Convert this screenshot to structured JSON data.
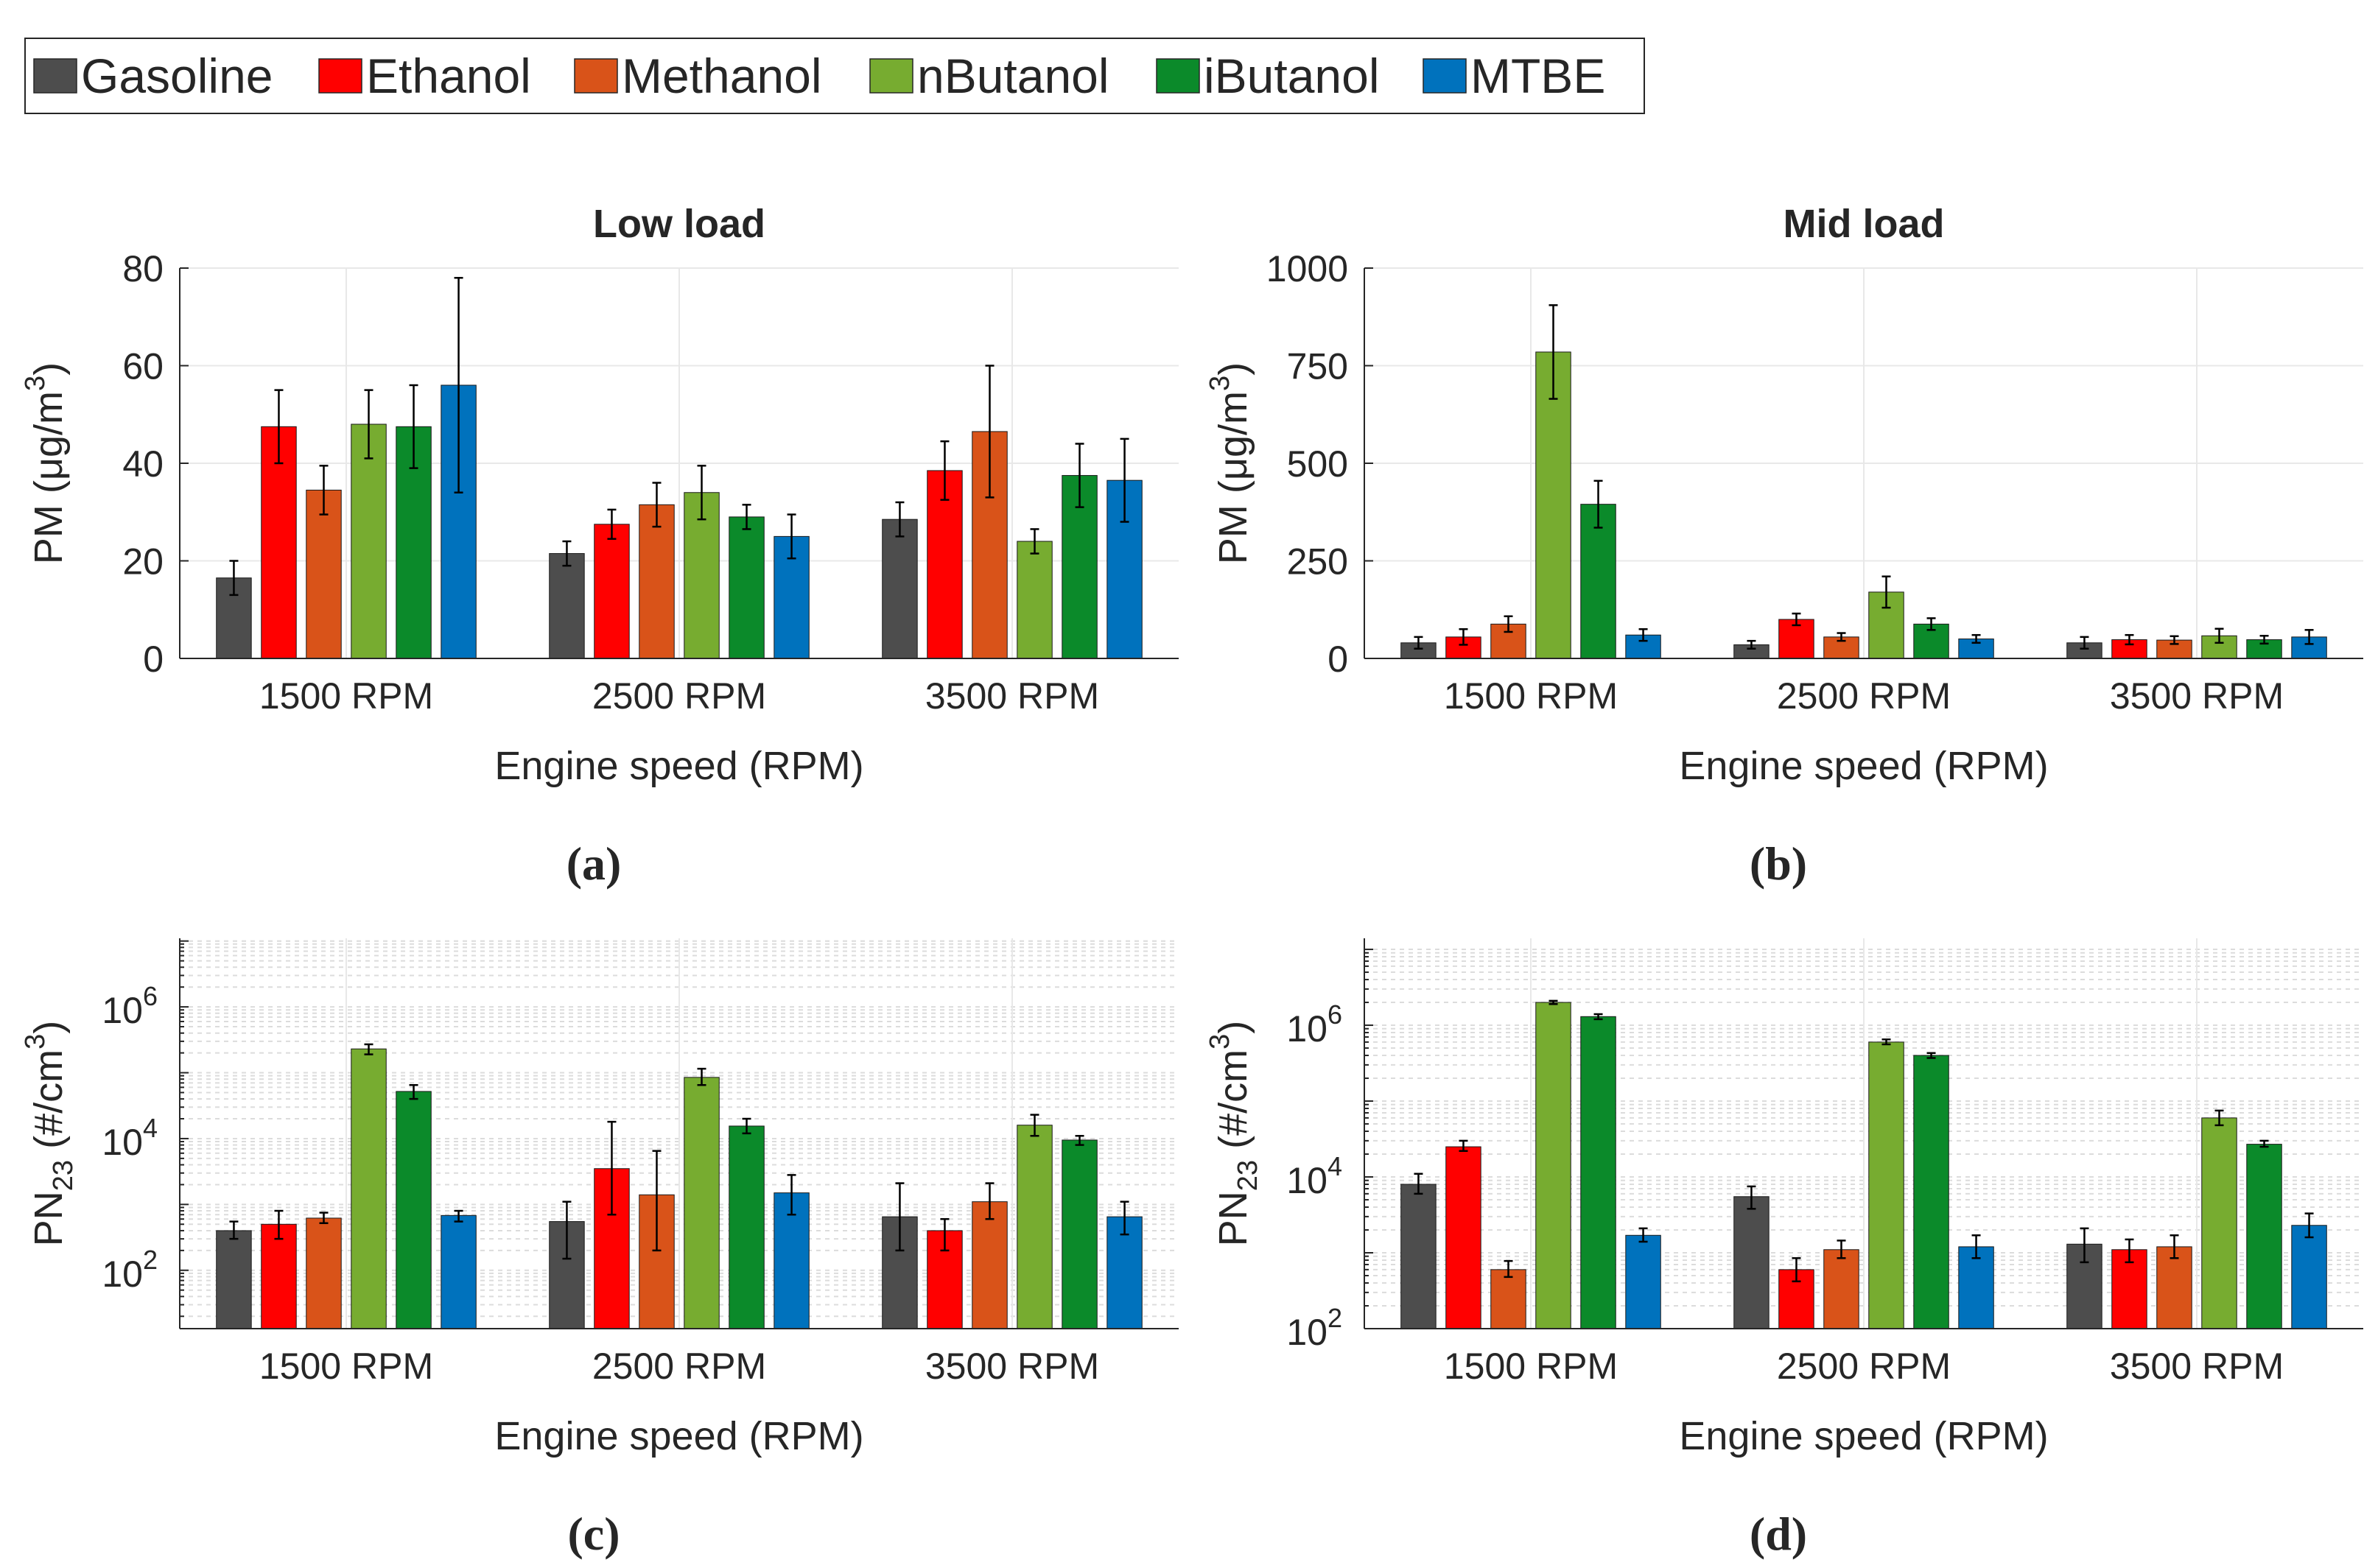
{
  "legend": {
    "entries": [
      {
        "name": "Gasoline",
        "color": "#4d4d4d"
      },
      {
        "name": "Ethanol",
        "color": "#ff0000"
      },
      {
        "name": "Methanol",
        "color": "#d95319"
      },
      {
        "name": "nButanol",
        "color": "#77ac30"
      },
      {
        "name": "iButanol",
        "color": "#0b8a2a"
      },
      {
        "name": "MTBE",
        "color": "#0072bd"
      }
    ]
  },
  "chart_data": [
    {
      "panel": "(a)",
      "type": "bar",
      "title": "Low load",
      "xlabel": "Engine speed (RPM)",
      "ylabel": "PM (μg/m3)",
      "ylabel_parts": {
        "main": "PM (μg/m",
        "sup": "3",
        "end": ")"
      },
      "yscale": "linear",
      "ylim": [
        0,
        80
      ],
      "yticks": [
        0,
        20,
        40,
        60,
        80
      ],
      "ytick_labels": [
        "0",
        "20",
        "40",
        "60",
        "80"
      ],
      "categories": [
        "1500 RPM",
        "2500 RPM",
        "3500 RPM"
      ],
      "series": [
        {
          "name": "Gasoline",
          "values": [
            16.5,
            21.5,
            28.5
          ],
          "err": [
            3.5,
            2.5,
            3.5
          ]
        },
        {
          "name": "Ethanol",
          "values": [
            47.5,
            27.5,
            38.5
          ],
          "err": [
            7.5,
            3,
            6
          ]
        },
        {
          "name": "Methanol",
          "values": [
            34.5,
            31.5,
            46.5
          ],
          "err": [
            5,
            4.5,
            13.5
          ]
        },
        {
          "name": "nButanol",
          "values": [
            48,
            34,
            24
          ],
          "err": [
            7,
            5.5,
            2.5
          ]
        },
        {
          "name": "iButanol",
          "values": [
            47.5,
            29,
            37.5
          ],
          "err": [
            8.5,
            2.5,
            6.5
          ]
        },
        {
          "name": "MTBE",
          "values": [
            56,
            25,
            36.5
          ],
          "err": [
            22,
            4.5,
            8.5
          ]
        }
      ]
    },
    {
      "panel": "(b)",
      "type": "bar",
      "title": "Mid load",
      "xlabel": "Engine speed (RPM)",
      "ylabel": "PM (μg/m3)",
      "ylabel_parts": {
        "main": "PM (μg/m",
        "sup": "3",
        "end": ")"
      },
      "yscale": "linear",
      "ylim": [
        0,
        1000
      ],
      "yticks": [
        0,
        250,
        500,
        750,
        1000
      ],
      "ytick_labels": [
        "0",
        "250",
        "500",
        "750",
        "1000"
      ],
      "categories": [
        "1500 RPM",
        "2500 RPM",
        "3500 RPM"
      ],
      "series": [
        {
          "name": "Gasoline",
          "values": [
            40,
            35,
            40
          ],
          "err": [
            15,
            10,
            15
          ]
        },
        {
          "name": "Ethanol",
          "values": [
            55,
            100,
            48
          ],
          "err": [
            20,
            15,
            12
          ]
        },
        {
          "name": "Methanol",
          "values": [
            88,
            55,
            47
          ],
          "err": [
            20,
            10,
            10
          ]
        },
        {
          "name": "nButanol",
          "values": [
            785,
            170,
            58
          ],
          "err": [
            120,
            40,
            18
          ]
        },
        {
          "name": "iButanol",
          "values": [
            395,
            88,
            48
          ],
          "err": [
            60,
            15,
            10
          ]
        },
        {
          "name": "MTBE",
          "values": [
            60,
            50,
            55
          ],
          "err": [
            15,
            10,
            18
          ]
        }
      ]
    },
    {
      "panel": "(c)",
      "type": "bar",
      "title": "",
      "xlabel": "Engine speed (RPM)",
      "ylabel": "PN23 (#/cm3)",
      "ylabel_parts": {
        "main": "PN",
        "sub": "23",
        "mid": " (#/cm",
        "sup": "3",
        "end": ")"
      },
      "yscale": "log",
      "ylim": [
        13,
        11000000
      ],
      "ytick_exponents": [
        2,
        4,
        6
      ],
      "ytick_labels": [
        "10",
        "10",
        "10"
      ],
      "categories": [
        "1500 RPM",
        "2500 RPM",
        "3500 RPM"
      ],
      "series": [
        {
          "name": "Gasoline",
          "values": [
            400,
            550,
            650
          ],
          "errlo": [
            300,
            150,
            200
          ],
          "errhi": [
            550,
            1100,
            2100
          ]
        },
        {
          "name": "Ethanol",
          "values": [
            500,
            3500,
            400
          ],
          "errlo": [
            300,
            700,
            200
          ],
          "errhi": [
            800,
            18000,
            600
          ]
        },
        {
          "name": "Methanol",
          "values": [
            620,
            1400,
            1100
          ],
          "errlo": [
            520,
            200,
            600
          ],
          "errhi": [
            750,
            6500,
            2100
          ]
        },
        {
          "name": "nButanol",
          "values": [
            230000,
            85000,
            16000
          ],
          "errlo": [
            190000,
            65000,
            11000
          ],
          "errhi": [
            270000,
            115000,
            23000
          ]
        },
        {
          "name": "iButanol",
          "values": [
            52000,
            15500,
            9500
          ],
          "errlo": [
            40000,
            12000,
            8000
          ],
          "errhi": [
            65000,
            20000,
            11000
          ]
        },
        {
          "name": "MTBE",
          "values": [
            680,
            1500,
            650
          ],
          "errlo": [
            550,
            700,
            350
          ],
          "errhi": [
            800,
            2800,
            1100
          ]
        }
      ]
    },
    {
      "panel": "(d)",
      "type": "bar",
      "title": "",
      "xlabel": "Engine speed (RPM)",
      "ylabel": "PN23 (#/cm3)",
      "ylabel_parts": {
        "main": "PN",
        "sub": "23",
        "mid": " (#/cm",
        "sup": "3",
        "end": ")"
      },
      "yscale": "log",
      "ylim": [
        100,
        14000000
      ],
      "ytick_exponents": [
        2,
        4,
        6
      ],
      "ytick_labels": [
        "10",
        "10",
        "10"
      ],
      "categories": [
        "1500 RPM",
        "2500 RPM",
        "3500 RPM"
      ],
      "series": [
        {
          "name": "Gasoline",
          "values": [
            8000,
            5500,
            1300
          ],
          "errlo": [
            6000,
            3800,
            750
          ],
          "errhi": [
            11000,
            7500,
            2100
          ]
        },
        {
          "name": "Ethanol",
          "values": [
            25000,
            600,
            1100
          ],
          "errlo": [
            22000,
            420,
            750
          ],
          "errhi": [
            30000,
            850,
            1500
          ]
        },
        {
          "name": "Methanol",
          "values": [
            600,
            1100,
            1200
          ],
          "errlo": [
            480,
            850,
            850
          ],
          "errhi": [
            780,
            1450,
            1700
          ]
        },
        {
          "name": "nButanol",
          "values": [
            2000000,
            600000,
            60000
          ],
          "errlo": [
            1900000,
            560000,
            48000
          ],
          "errhi": [
            2100000,
            650000,
            75000
          ]
        },
        {
          "name": "iButanol",
          "values": [
            1300000,
            400000,
            27000
          ],
          "errlo": [
            1200000,
            370000,
            25000
          ],
          "errhi": [
            1400000,
            430000,
            30000
          ]
        },
        {
          "name": "MTBE",
          "values": [
            1700,
            1200,
            2300
          ],
          "errlo": [
            1400,
            850,
            1600
          ],
          "errhi": [
            2100,
            1700,
            3300
          ]
        }
      ]
    }
  ],
  "subfigure_labels": [
    "(a)",
    "(b)",
    "(c)",
    "(d)"
  ]
}
